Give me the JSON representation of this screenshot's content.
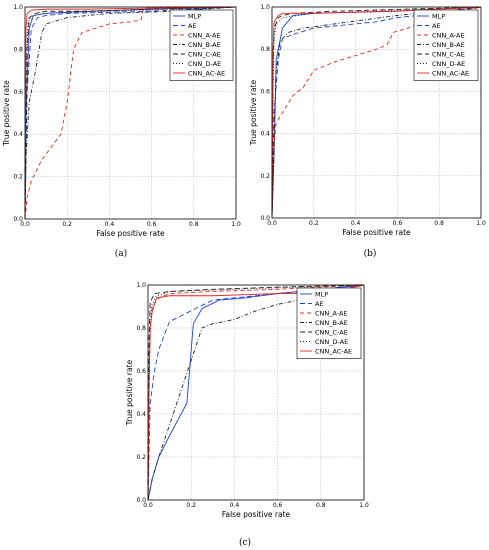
{
  "styles": {
    "MLP": {
      "color": "#1f3fd6",
      "dash": ""
    },
    "AE": {
      "color": "#1f3fd6",
      "dash": "5,3"
    },
    "CNN_A-AE": {
      "color": "#e8261e",
      "dash": "4,3"
    },
    "CNN_B-AE": {
      "color": "#222222",
      "dash": "4,2,1,2"
    },
    "CNN_C-AE": {
      "color": "#222222",
      "dash": "5,3"
    },
    "CNN_D-AE": {
      "color": "#222222",
      "dash": "1,2"
    },
    "CNN_AC-AE": {
      "color": "#e8261e",
      "dash": ""
    }
  },
  "chart_data": [
    {
      "type": "line",
      "caption": "(a)",
      "xlabel": "False positive rate",
      "ylabel": "True positive rate",
      "xlim": [
        0,
        1
      ],
      "ylim": [
        0,
        1
      ],
      "xticks": [
        "0.0",
        "0.2",
        "0.4",
        "0.6",
        "0.8",
        "1.0"
      ],
      "yticks": [
        "0.0",
        "0.2",
        "0.4",
        "0.6",
        "0.8",
        "1.0"
      ],
      "grid": true,
      "legend": "top-right",
      "series": [
        {
          "name": "MLP",
          "x": [
            0,
            0.005,
            0.02,
            0.04,
            0.1,
            0.3,
            0.6,
            1.0
          ],
          "y": [
            0,
            0.5,
            0.9,
            0.96,
            0.97,
            0.98,
            0.99,
            1.0
          ]
        },
        {
          "name": "AE",
          "x": [
            0,
            0.01,
            0.03,
            0.06,
            0.1,
            0.2,
            0.4,
            0.6,
            1.0
          ],
          "y": [
            0,
            0.6,
            0.9,
            0.95,
            0.96,
            0.97,
            0.975,
            0.98,
            1.0
          ]
        },
        {
          "name": "CNN_A-AE",
          "x": [
            0,
            0.01,
            0.03,
            0.08,
            0.17,
            0.2,
            0.23,
            0.27,
            0.4,
            0.5,
            0.55,
            0.56,
            0.6,
            1.0
          ],
          "y": [
            0,
            0.1,
            0.18,
            0.28,
            0.4,
            0.55,
            0.8,
            0.88,
            0.92,
            0.93,
            0.94,
            0.99,
            1.0,
            1.0
          ]
        },
        {
          "name": "CNN_B-AE",
          "x": [
            0,
            0.005,
            0.02,
            0.05,
            0.08,
            0.1,
            0.2,
            0.4,
            0.7,
            1.0
          ],
          "y": [
            0,
            0.3,
            0.55,
            0.7,
            0.88,
            0.92,
            0.95,
            0.97,
            0.98,
            1.0
          ]
        },
        {
          "name": "CNN_C-AE",
          "x": [
            0,
            0.01,
            0.02,
            0.05,
            0.1,
            0.3,
            0.6,
            1.0
          ],
          "y": [
            0,
            0.8,
            0.95,
            0.97,
            0.98,
            0.98,
            0.99,
            1.0
          ]
        },
        {
          "name": "CNN_D-AE",
          "x": [
            0,
            0.005,
            0.015,
            0.04,
            0.1,
            0.4,
            1.0
          ],
          "y": [
            0,
            0.7,
            0.93,
            0.96,
            0.97,
            0.98,
            1.0
          ]
        },
        {
          "name": "CNN_AC-AE",
          "x": [
            0,
            0.005,
            0.01,
            0.03,
            0.1,
            0.3,
            0.6,
            1.0
          ],
          "y": [
            0,
            0.9,
            0.97,
            0.985,
            0.99,
            0.99,
            0.995,
            1.0
          ]
        }
      ]
    },
    {
      "type": "line",
      "caption": "(b)",
      "xlabel": "False positive rate",
      "ylabel": "True positive rate",
      "xlim": [
        0,
        1
      ],
      "ylim": [
        0,
        1
      ],
      "xticks": [
        "0.0",
        "0.2",
        "0.4",
        "0.6",
        "0.8",
        "1.0"
      ],
      "yticks": [
        "0.0",
        "0.2",
        "0.4",
        "0.6",
        "0.8",
        "1.0"
      ],
      "grid": true,
      "legend": "top-right",
      "series": [
        {
          "name": "MLP",
          "x": [
            0,
            0.01,
            0.02,
            0.04,
            0.05,
            0.1,
            0.2,
            0.6,
            1.0
          ],
          "y": [
            0,
            0.3,
            0.75,
            0.85,
            0.9,
            0.96,
            0.97,
            0.98,
            1.0
          ]
        },
        {
          "name": "AE",
          "x": [
            0,
            0.01,
            0.03,
            0.05,
            0.1,
            0.2,
            0.3,
            0.5,
            0.6,
            0.8,
            1.0
          ],
          "y": [
            0,
            0.5,
            0.75,
            0.85,
            0.87,
            0.9,
            0.91,
            0.93,
            0.95,
            0.97,
            1.0
          ]
        },
        {
          "name": "CNN_A-AE",
          "x": [
            0,
            0.005,
            0.02,
            0.05,
            0.1,
            0.15,
            0.2,
            0.3,
            0.4,
            0.5,
            0.55,
            0.58,
            0.65,
            0.72,
            1.0
          ],
          "y": [
            0,
            0.3,
            0.45,
            0.5,
            0.58,
            0.62,
            0.7,
            0.74,
            0.77,
            0.8,
            0.82,
            0.88,
            0.9,
            0.93,
            1.0
          ]
        },
        {
          "name": "CNN_B-AE",
          "x": [
            0,
            0.01,
            0.02,
            0.04,
            0.08,
            0.15,
            0.3,
            0.6,
            1.0
          ],
          "y": [
            0,
            0.4,
            0.7,
            0.84,
            0.88,
            0.9,
            0.92,
            0.96,
            1.0
          ]
        },
        {
          "name": "CNN_C-AE",
          "x": [
            0,
            0.005,
            0.01,
            0.03,
            0.05,
            0.1,
            0.3,
            1.0
          ],
          "y": [
            0,
            0.7,
            0.9,
            0.95,
            0.96,
            0.97,
            0.98,
            1.0
          ]
        },
        {
          "name": "CNN_D-AE",
          "x": [
            0,
            0.005,
            0.01,
            0.02,
            0.05,
            0.2,
            1.0
          ],
          "y": [
            0,
            0.6,
            0.85,
            0.92,
            0.95,
            0.97,
            1.0
          ]
        },
        {
          "name": "CNN_AC-AE",
          "x": [
            0,
            0.005,
            0.01,
            0.03,
            0.05,
            0.2,
            0.6,
            1.0
          ],
          "y": [
            0,
            0.8,
            0.93,
            0.96,
            0.97,
            0.97,
            0.98,
            1.0
          ]
        }
      ]
    },
    {
      "type": "line",
      "caption": "(c)",
      "xlabel": "False positive rate",
      "ylabel": "True positive rate",
      "xlim": [
        0,
        1
      ],
      "ylim": [
        0,
        1
      ],
      "xticks": [
        "0.0",
        "0.2",
        "0.4",
        "0.6",
        "0.8",
        "1.0"
      ],
      "yticks": [
        "0.0",
        "0.2",
        "0.4",
        "0.6",
        "0.8",
        "1.0"
      ],
      "grid": true,
      "legend": "top-right",
      "series": [
        {
          "name": "MLP",
          "x": [
            0,
            0.02,
            0.05,
            0.1,
            0.18,
            0.21,
            0.25,
            0.33,
            0.45,
            0.6,
            0.7,
            1.0
          ],
          "y": [
            0,
            0.1,
            0.2,
            0.3,
            0.45,
            0.82,
            0.89,
            0.93,
            0.94,
            0.96,
            0.97,
            1.0
          ]
        },
        {
          "name": "AE",
          "x": [
            0,
            0.01,
            0.03,
            0.05,
            0.08,
            0.1,
            0.2,
            0.3,
            0.6,
            1.0
          ],
          "y": [
            0,
            0.45,
            0.6,
            0.7,
            0.78,
            0.83,
            0.88,
            0.93,
            0.96,
            1.0
          ]
        },
        {
          "name": "CNN_A-AE",
          "x": [
            0,
            0.005,
            0.01,
            0.02,
            0.05,
            0.1,
            0.3,
            0.6,
            1.0
          ],
          "y": [
            0,
            0.5,
            0.8,
            0.9,
            0.94,
            0.96,
            0.97,
            0.98,
            1.0
          ]
        },
        {
          "name": "CNN_B-AE",
          "x": [
            0,
            0.02,
            0.05,
            0.1,
            0.15,
            0.2,
            0.25,
            0.3,
            0.4,
            0.5,
            0.6,
            0.65,
            1.0
          ],
          "y": [
            0,
            0.1,
            0.2,
            0.35,
            0.5,
            0.65,
            0.8,
            0.82,
            0.84,
            0.88,
            0.91,
            0.92,
            1.0
          ]
        },
        {
          "name": "CNN_C-AE",
          "x": [
            0,
            0.005,
            0.01,
            0.03,
            0.1,
            0.3,
            0.6,
            1.0
          ],
          "y": [
            0,
            0.75,
            0.92,
            0.96,
            0.97,
            0.98,
            0.99,
            1.0
          ]
        },
        {
          "name": "CNN_D-AE",
          "x": [
            0,
            0.005,
            0.015,
            0.04,
            0.1,
            0.4,
            1.0
          ],
          "y": [
            0,
            0.6,
            0.9,
            0.95,
            0.97,
            0.98,
            1.0
          ]
        },
        {
          "name": "CNN_AC-AE",
          "x": [
            0,
            0.005,
            0.01,
            0.02,
            0.04,
            0.1,
            0.3,
            0.6,
            0.8,
            1.0
          ],
          "y": [
            0,
            0.5,
            0.8,
            0.88,
            0.94,
            0.95,
            0.95,
            0.96,
            0.96,
            1.0
          ]
        }
      ]
    }
  ]
}
